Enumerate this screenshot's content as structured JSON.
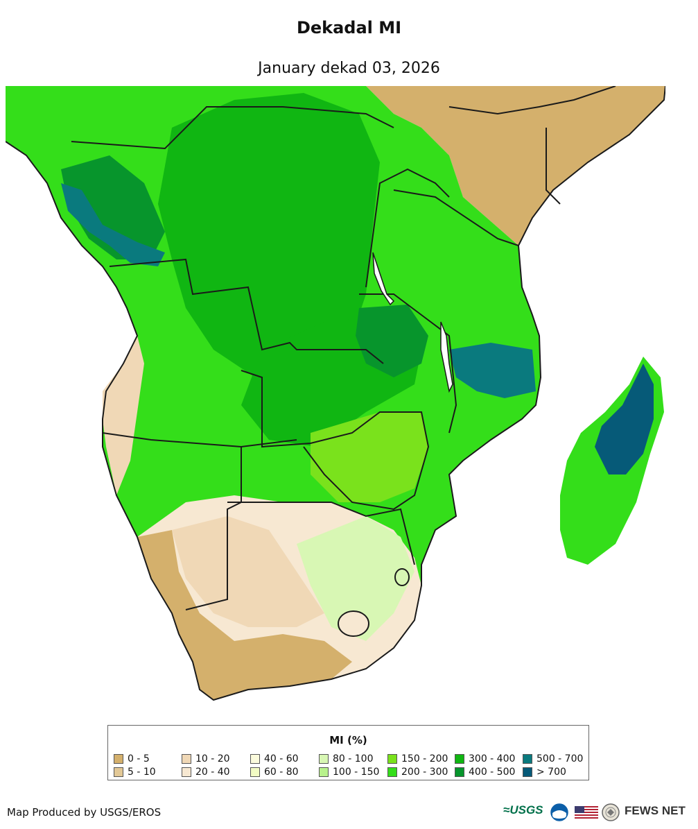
{
  "header": {
    "title": "Dekadal MI",
    "subtitle": "January dekad 03, 2026"
  },
  "legend": {
    "title": "MI (%)",
    "items": [
      {
        "label": "0 - 5",
        "color": "#d4b06c"
      },
      {
        "label": "5 - 10",
        "color": "#e2c896"
      },
      {
        "label": "10 - 20",
        "color": "#f0d8b6"
      },
      {
        "label": "20 - 40",
        "color": "#f7e8d2"
      },
      {
        "label": "40 - 60",
        "color": "#fbfbdc"
      },
      {
        "label": "60 - 80",
        "color": "#f2fbc4"
      },
      {
        "label": "80 - 100",
        "color": "#d8f7b4"
      },
      {
        "label": "100 - 150",
        "color": "#b8f28c"
      },
      {
        "label": "150 - 200",
        "color": "#7ae21c"
      },
      {
        "label": "200 - 300",
        "color": "#34de1a"
      },
      {
        "label": "300 - 400",
        "color": "#10b612"
      },
      {
        "label": "400 - 500",
        "color": "#07952c"
      },
      {
        "label": "500 - 700",
        "color": "#0a7a7e"
      },
      {
        "label": "> 700",
        "color": "#065a78"
      }
    ]
  },
  "footer": {
    "credit": "Map Produced by USGS/EROS",
    "logo_usgs": "≈USGS",
    "logo_fews": "FEWS NET"
  }
}
